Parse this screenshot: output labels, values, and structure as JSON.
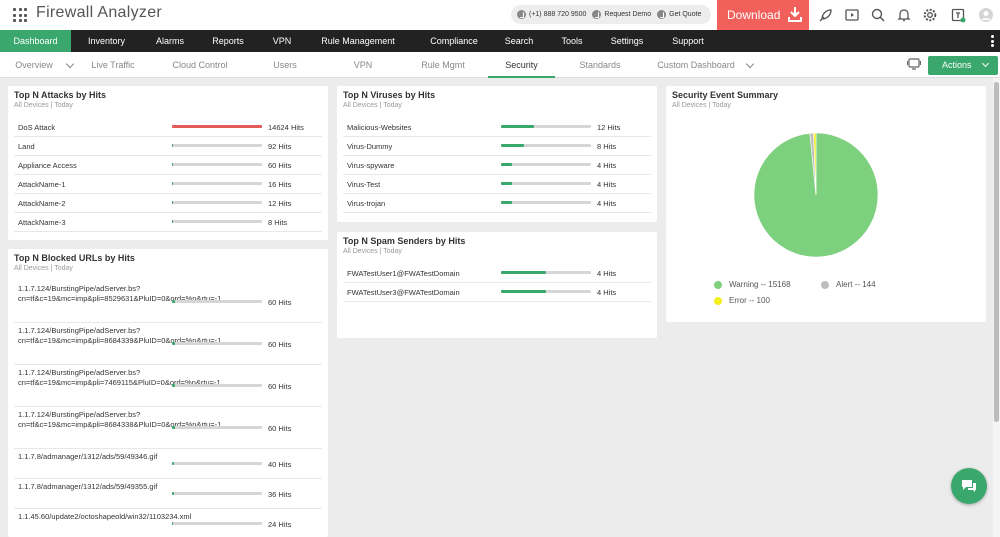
{
  "app": {
    "title": "Firewall Analyzer"
  },
  "header": {
    "phone": "(+1) 888 720 9500",
    "request_demo": "Request Demo",
    "get_quote": "Get Quote",
    "download": "Download"
  },
  "main_nav": {
    "items": [
      "Dashboard",
      "Inventory",
      "Alarms",
      "Reports",
      "VPN",
      "Rule Management",
      "Compliance",
      "Search",
      "Tools",
      "Settings",
      "Support"
    ],
    "active": "Dashboard"
  },
  "sub_nav": {
    "items": [
      "Overview",
      "Live Traffic",
      "Cloud Control",
      "Users",
      "VPN",
      "Rule Mgmt",
      "Security",
      "Standards",
      "Custom Dashboard"
    ],
    "active": "Security",
    "actions_label": "Actions"
  },
  "widgets": {
    "attacks": {
      "title": "Top N Attacks by Hits",
      "subtitle": "All Devices | Today",
      "rows": [
        {
          "name": "DoS Attack",
          "value": "14624 Hits",
          "pct": 100,
          "color": "#e35a5a"
        },
        {
          "name": "Land",
          "value": "92 Hits",
          "pct": 1
        },
        {
          "name": "Appliance Access",
          "value": "60 Hits",
          "pct": 1
        },
        {
          "name": "AttackName-1",
          "value": "16 Hits",
          "pct": 0.5
        },
        {
          "name": "AttackName-2",
          "value": "12 Hits",
          "pct": 0.5
        },
        {
          "name": "AttackName-3",
          "value": "8 Hits",
          "pct": 0.5
        }
      ]
    },
    "blocked_urls": {
      "title": "Top N Blocked URLs by Hits",
      "subtitle": "All Devices | Today",
      "rows": [
        {
          "name": "1.1.7.124/BurstingPipe/adServer.bs?cn=tf&c=19&mc=imp&pli=8529631&PluID=0&ord=%n&rtu=-1",
          "value": "60 Hits",
          "pct": 3
        },
        {
          "name": "1.1.7.124/BurstingPipe/adServer.bs?cn=tf&c=19&mc=imp&pli=8684339&PluID=0&ord=%n&rtu=-1",
          "value": "60 Hits",
          "pct": 3
        },
        {
          "name": "1.1.7.124/BurstingPipe/adServer.bs?cn=tf&c=19&mc=imp&pli=7469115&PluID=0&ord=%n&rtu=-1",
          "value": "60 Hits",
          "pct": 3
        },
        {
          "name": "1.1.7.124/BurstingPipe/adServer.bs?cn=tf&c=19&mc=imp&pli=8684338&PluID=0&ord=%n&rtu=-1",
          "value": "60 Hits",
          "pct": 3
        },
        {
          "name": "1.1.7.8/admanager/1312/ads/59/49346.gif",
          "value": "40 Hits",
          "pct": 2
        },
        {
          "name": "1.1.7.8/admanager/1312/ads/59/49355.gif",
          "value": "36 Hits",
          "pct": 2
        },
        {
          "name": "1.1.45.60/update2/octoshapeold/win32/1103234.xml",
          "value": "24 Hits",
          "pct": 1.5
        }
      ]
    },
    "viruses": {
      "title": "Top N Viruses by Hits",
      "subtitle": "All Devices | Today",
      "rows": [
        {
          "name": "Malicious-Websites",
          "value": "12 Hits",
          "pct": 37
        },
        {
          "name": "Virus-Dummy",
          "value": "8 Hits",
          "pct": 25
        },
        {
          "name": "Virus-spyware",
          "value": "4 Hits",
          "pct": 12
        },
        {
          "name": "Virus-Test",
          "value": "4 Hits",
          "pct": 12
        },
        {
          "name": "Virus-trojan",
          "value": "4 Hits",
          "pct": 12
        }
      ]
    },
    "spam": {
      "title": "Top N Spam Senders by Hits",
      "subtitle": "All Devices | Today",
      "rows": [
        {
          "name": "FWATestUser1@FWATestDomain",
          "value": "4 Hits",
          "pct": 50
        },
        {
          "name": "FWATestUser3@FWATestDomain",
          "value": "4 Hits",
          "pct": 50
        }
      ]
    },
    "security_summary": {
      "title": "Security Event Summary",
      "subtitle": "All Devices | Today",
      "chart_data": {
        "type": "pie",
        "categories": [
          "Warning",
          "Alert",
          "Error"
        ],
        "values": [
          15168,
          144,
          100
        ],
        "colors": [
          "#7dd07e",
          "#bdbdbd",
          "#f3ee1f"
        ],
        "legend_labels": [
          "Warning -- 15168",
          "Alert -- 144",
          "Error -- 100"
        ]
      }
    }
  }
}
